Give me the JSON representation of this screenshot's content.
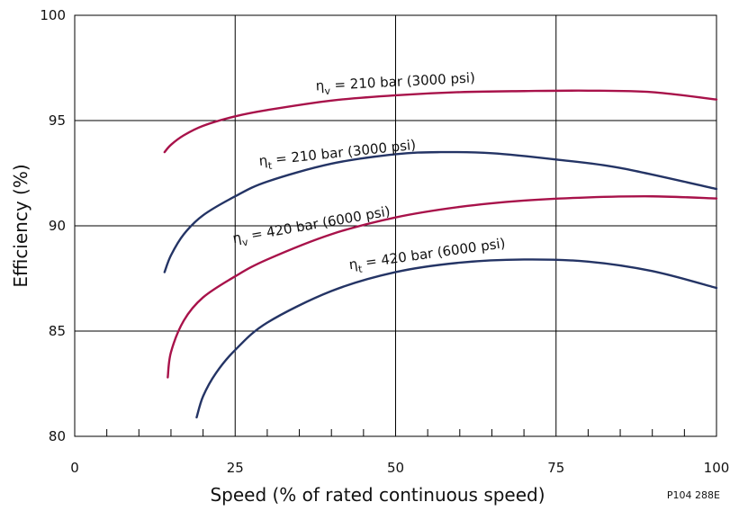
{
  "chart_data": {
    "type": "line",
    "xlabel": "Speed (% of rated continuous speed)",
    "ylabel": "Efficiency (%)",
    "xlim": [
      0,
      100
    ],
    "ylim": [
      80,
      100
    ],
    "x_ticks": [
      "0",
      "25",
      "50",
      "75",
      "100"
    ],
    "y_ticks": [
      "80",
      "85",
      "90",
      "95",
      "100"
    ],
    "grid": "major",
    "figure_code": "P104 288E",
    "colors": {
      "volumetric": "#A8124A",
      "total": "#243465",
      "grid": "#000000"
    },
    "series": [
      {
        "name": "ηv = 210 bar (3000 psi)",
        "symbol": "η",
        "subscript": "v",
        "condition": "= 210 bar (3000 psi)",
        "color": "#A8124A",
        "x": [
          14,
          15,
          17,
          20,
          25,
          30,
          40,
          50,
          60,
          70,
          80,
          90,
          100
        ],
        "y": [
          93.5,
          93.85,
          94.3,
          94.75,
          95.2,
          95.5,
          95.95,
          96.2,
          96.35,
          96.4,
          96.42,
          96.35,
          96.0
        ]
      },
      {
        "name": "ηt = 210 bar (3000 psi)",
        "symbol": "η",
        "subscript": "t",
        "condition": "= 210 bar (3000 psi)",
        "color": "#243465",
        "x": [
          14,
          15,
          17,
          20,
          25,
          30,
          40,
          50,
          57,
          65,
          75,
          85,
          100
        ],
        "y": [
          87.8,
          88.6,
          89.6,
          90.5,
          91.4,
          92.1,
          92.95,
          93.4,
          93.5,
          93.45,
          93.15,
          92.75,
          91.75
        ]
      },
      {
        "name": "ηv = 420 bar (6000 psi)",
        "symbol": "η",
        "subscript": "v",
        "condition": "= 420 bar (6000 psi)",
        "color": "#A8124A",
        "x": [
          14.5,
          15,
          17,
          20,
          25,
          30,
          40,
          50,
          60,
          70,
          80,
          90,
          100
        ],
        "y": [
          82.8,
          84.0,
          85.5,
          86.6,
          87.6,
          88.4,
          89.6,
          90.4,
          90.9,
          91.2,
          91.35,
          91.4,
          91.3
        ]
      },
      {
        "name": "ηt = 420 bar (6000 psi)",
        "symbol": "η",
        "subscript": "t",
        "condition": "= 420 bar (6000 psi)",
        "color": "#243465",
        "x": [
          19,
          20,
          22,
          25,
          30,
          40,
          50,
          60,
          70,
          80,
          90,
          100
        ],
        "y": [
          80.9,
          81.9,
          83.0,
          84.1,
          85.4,
          86.9,
          87.8,
          88.25,
          88.4,
          88.3,
          87.85,
          87.05
        ]
      }
    ]
  }
}
